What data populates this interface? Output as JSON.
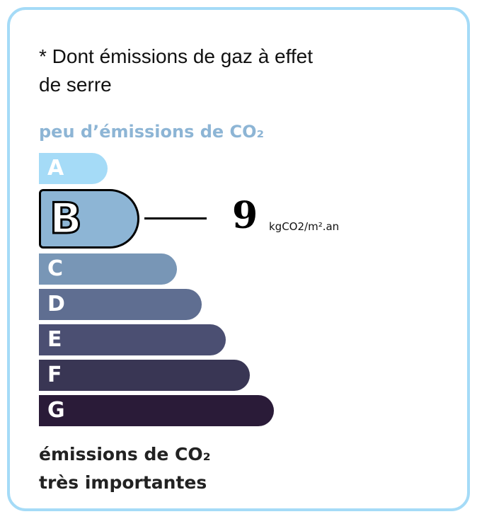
{
  "title_line1": "* Dont émissions de gaz à effet",
  "title_line2": "de serre",
  "top_label": "peu d’émissions de CO₂",
  "classes": [
    {
      "letter": "A",
      "color": "#a5dbf7"
    },
    {
      "letter": "B",
      "color": "#8db5d5"
    },
    {
      "letter": "C",
      "color": "#7896b6"
    },
    {
      "letter": "D",
      "color": "#5f6e91"
    },
    {
      "letter": "E",
      "color": "#4b4f72"
    },
    {
      "letter": "F",
      "color": "#393654"
    },
    {
      "letter": "G",
      "color": "#2a1b38"
    }
  ],
  "selected_class": "B",
  "value": "9",
  "unit": "kgCO2/m².an",
  "bottom_line1": "émissions de CO₂",
  "bottom_line2": "très importantes"
}
